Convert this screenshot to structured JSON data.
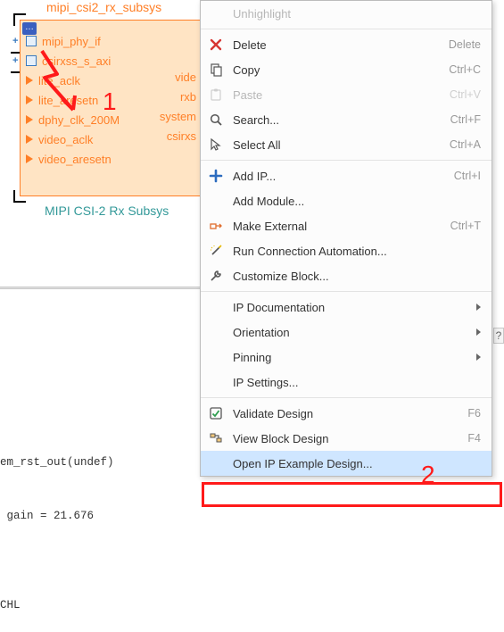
{
  "ip_block": {
    "title": "mipi_csi2_rx_subsys",
    "caption": "MIPI CSI-2 Rx Subsys",
    "title_color": "#ff7f27",
    "caption_color": "#339999",
    "bg_color": "#ffe4c4",
    "border_color": "#ff7f27",
    "inputs": [
      {
        "label": "mipi_phy_if",
        "kind": "group"
      },
      {
        "label": "csirxss_s_axi",
        "kind": "group"
      },
      {
        "label": "lite_aclk",
        "kind": "clk"
      },
      {
        "label": "lite_aresetn",
        "kind": "clk"
      },
      {
        "label": "dphy_clk_200M",
        "kind": "clk"
      },
      {
        "label": "video_aclk",
        "kind": "clk"
      },
      {
        "label": "video_aresetn",
        "kind": "clk"
      }
    ],
    "outputs": [
      {
        "label": "vide"
      },
      {
        "label": "rxb"
      },
      {
        "label": "system"
      },
      {
        "label": "csirxs"
      }
    ]
  },
  "annotations": {
    "num1": "1",
    "num2": "2",
    "color": "#ff1a1a",
    "fontsize": 28,
    "highlight_box_color": "#ff1a1a"
  },
  "console": {
    "lines": [
      "em_rst_out(undef)",
      " gain = 21.676",
      "",
      "CHL"
    ],
    "font_family": "Consolas",
    "font_size": 12.5
  },
  "help_tab": "?",
  "context_menu": {
    "bg_color": "#fcfcfc",
    "border_color": "#bcbcbc",
    "hover_color": "#cfe6ff",
    "disabled_color": "#b7b7b7",
    "items": [
      {
        "label": "Unhighlight",
        "icon": null,
        "disabled": true
      },
      {
        "sep": true
      },
      {
        "label": "Delete",
        "icon": "x",
        "accel": "Delete"
      },
      {
        "label": "Copy",
        "icon": "copy",
        "accel": "Ctrl+C"
      },
      {
        "label": "Paste",
        "icon": "paste",
        "accel": "Ctrl+V",
        "disabled": true
      },
      {
        "label": "Search...",
        "icon": "search",
        "accel": "Ctrl+F"
      },
      {
        "label": "Select All",
        "icon": "cursor",
        "accel": "Ctrl+A"
      },
      {
        "sep": true
      },
      {
        "label": "Add IP...",
        "icon": "plus",
        "accel": "Ctrl+I"
      },
      {
        "label": "Add Module...",
        "icon": null
      },
      {
        "label": "Make External",
        "icon": "ext",
        "accel": "Ctrl+T"
      },
      {
        "label": "Run Connection Automation...",
        "icon": "wand"
      },
      {
        "label": "Customize Block...",
        "icon": "wrench"
      },
      {
        "sep": true
      },
      {
        "label": "IP Documentation",
        "icon": null,
        "submenu": true
      },
      {
        "label": "Orientation",
        "icon": null,
        "submenu": true
      },
      {
        "label": "Pinning",
        "icon": null,
        "submenu": true
      },
      {
        "label": "IP Settings...",
        "icon": null
      },
      {
        "sep": true
      },
      {
        "label": "Validate Design",
        "icon": "check",
        "accel": "F6"
      },
      {
        "label": "View Block Design",
        "icon": "block",
        "accel": "F4"
      },
      {
        "label": "Open IP Example Design...",
        "icon": null,
        "selected": true
      }
    ]
  }
}
